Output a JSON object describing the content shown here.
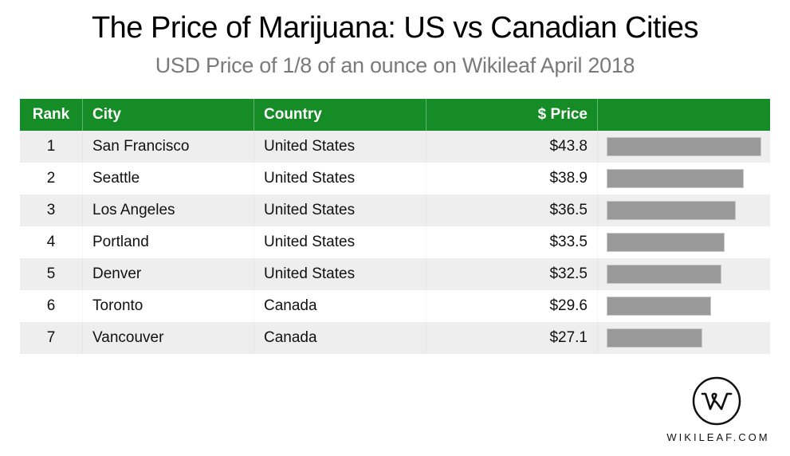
{
  "header": {
    "title": "The Price of Marijuana: US vs Canadian Cities",
    "subtitle": "USD Price of 1/8 of an ounce on Wikileaf April 2018"
  },
  "table": {
    "columns": [
      "Rank",
      "City",
      "Country",
      "$ Price",
      ""
    ],
    "rows": [
      {
        "rank": "1",
        "city": "San Francisco",
        "country": "United States",
        "price": "$43.8",
        "value": 43.8
      },
      {
        "rank": "2",
        "city": "Seattle",
        "country": "United States",
        "price": "$38.9",
        "value": 38.9
      },
      {
        "rank": "3",
        "city": "Los Angeles",
        "country": "United States",
        "price": "$36.5",
        "value": 36.5
      },
      {
        "rank": "4",
        "city": "Portland",
        "country": "United States",
        "price": "$33.5",
        "value": 33.5
      },
      {
        "rank": "5",
        "city": "Denver",
        "country": "United States",
        "price": "$32.5",
        "value": 32.5
      },
      {
        "rank": "6",
        "city": "Toronto",
        "country": "Canada",
        "price": "$29.6",
        "value": 29.6
      },
      {
        "rank": "7",
        "city": "Vancouver",
        "country": "Canada",
        "price": "$27.1",
        "value": 27.1
      }
    ]
  },
  "colors": {
    "header_bg": "#158c25",
    "header_text": "#ffffff",
    "row_odd": "#eeeeee",
    "row_even": "#ffffff",
    "bar": "#999999",
    "subtitle": "#7a7a7a"
  },
  "footer": {
    "logo_icon": "wikileaf-w-logo-icon",
    "brand": "WIKILEAF.COM"
  },
  "chart_data": {
    "type": "table",
    "title": "The Price of Marijuana: US vs Canadian Cities",
    "subtitle": "USD Price of 1/8 of an ounce on Wikileaf April 2018",
    "columns": [
      "Rank",
      "City",
      "Country",
      "$ Price"
    ],
    "categories": [
      "San Francisco",
      "Seattle",
      "Los Angeles",
      "Portland",
      "Denver",
      "Toronto",
      "Vancouver"
    ],
    "series": [
      {
        "name": "$ Price",
        "values": [
          43.8,
          38.9,
          36.5,
          33.5,
          32.5,
          29.6,
          27.1
        ]
      }
    ],
    "countries": [
      "United States",
      "United States",
      "United States",
      "United States",
      "United States",
      "Canada",
      "Canada"
    ],
    "ranks": [
      1,
      2,
      3,
      4,
      5,
      6,
      7
    ],
    "inline_bars": true,
    "xlabel": "",
    "ylabel": "USD"
  }
}
